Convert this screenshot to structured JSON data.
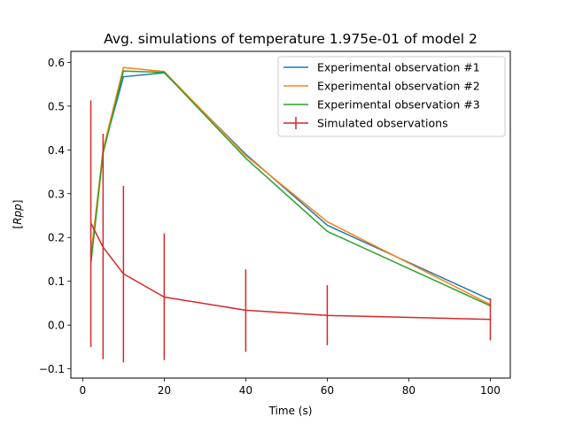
{
  "chart_data": {
    "type": "line",
    "title": "Avg. simulations of temperature 1.975e-01 of model 2",
    "xlabel": "Time (s)",
    "ylabel_pre": "[",
    "ylabel_italic": "Rpp",
    "ylabel_post": "]",
    "xlim": [
      -2.9,
      104.9
    ],
    "ylim": [
      -0.121,
      0.625
    ],
    "xticks": [
      0,
      20,
      40,
      60,
      80,
      100
    ],
    "xtick_labels": [
      "0",
      "20",
      "40",
      "60",
      "80",
      "100"
    ],
    "yticks": [
      -0.1,
      0.0,
      0.1,
      0.2,
      0.3,
      0.4,
      0.5,
      0.6
    ],
    "ytick_labels": [
      "−0.1",
      "0.0",
      "0.1",
      "0.2",
      "0.3",
      "0.4",
      "0.5",
      "0.6"
    ],
    "grid": false,
    "legend_position": "top-right",
    "series": [
      {
        "name": "Experimental observation #1",
        "color": "#1f77b4",
        "x": [
          2,
          5,
          10,
          20,
          40,
          60,
          100
        ],
        "y": [
          0.147,
          0.398,
          0.567,
          0.576,
          0.39,
          0.228,
          0.058
        ]
      },
      {
        "name": "Experimental observation #2",
        "color": "#ff7f0e",
        "x": [
          2,
          5,
          10,
          20,
          40,
          60,
          100
        ],
        "y": [
          0.158,
          0.4,
          0.588,
          0.579,
          0.387,
          0.236,
          0.047
        ]
      },
      {
        "name": "Experimental observation #3",
        "color": "#2ca02c",
        "x": [
          2,
          5,
          10,
          20,
          40,
          60,
          100
        ],
        "y": [
          0.14,
          0.392,
          0.58,
          0.577,
          0.381,
          0.214,
          0.044
        ]
      },
      {
        "name": "Simulated observations",
        "color": "#d62728",
        "x": [
          2,
          5,
          10,
          20,
          40,
          60,
          100
        ],
        "y": [
          0.233,
          0.178,
          0.117,
          0.064,
          0.034,
          0.022,
          0.013
        ],
        "yerr_low": [
          -0.05,
          -0.078,
          -0.085,
          -0.08,
          -0.061,
          -0.046,
          -0.035
        ],
        "yerr_high": [
          0.513,
          0.437,
          0.318,
          0.209,
          0.127,
          0.091,
          0.061
        ],
        "errorbars": true
      }
    ]
  }
}
